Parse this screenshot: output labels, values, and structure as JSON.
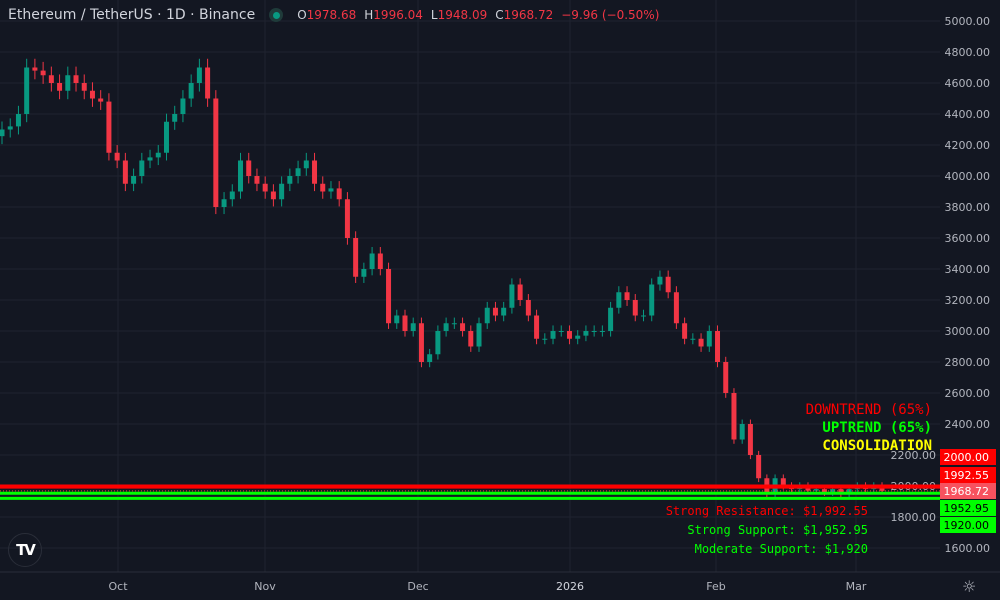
{
  "header": {
    "symbol": "Ethereum / TetherUS · 1D · Binance",
    "o_label": "O",
    "o": "1978.68",
    "h_label": "H",
    "h": "1996.04",
    "l_label": "L",
    "l": "1948.09",
    "c_label": "C",
    "c": "1968.72",
    "change": "−9.96 (−0.50%)"
  },
  "colors": {
    "up": "#089981",
    "down": "#f23645",
    "bg": "#131722",
    "grid": "#1f2330",
    "axis_text": "#b2b5be",
    "resistance": "#ff0000",
    "support": "#00ff00",
    "consolidation": "#ffff00"
  },
  "chart_data": {
    "type": "candlestick",
    "title": "Ethereum / TetherUS · 1D · Binance",
    "ylim": [
      1600,
      5000
    ],
    "y_ticks": [
      "5000.00",
      "4800.00",
      "4600.00",
      "4400.00",
      "4200.00",
      "4000.00",
      "3800.00",
      "3600.00",
      "3400.00",
      "3200.00",
      "3000.00",
      "2800.00",
      "2600.00",
      "2400.00",
      "2200.00",
      "2000.00",
      "1800.00",
      "1600.00"
    ],
    "x_ticks": [
      "Oct",
      "Nov",
      "Dec",
      "2026",
      "Feb",
      "Mar"
    ],
    "grid": true,
    "closes": [
      4300,
      4320,
      4400,
      4700,
      4680,
      4650,
      4600,
      4550,
      4650,
      4600,
      4550,
      4500,
      4480,
      4150,
      4100,
      3950,
      4000,
      4100,
      4120,
      4150,
      4350,
      4400,
      4500,
      4600,
      4700,
      4500,
      3800,
      3850,
      3900,
      4100,
      4000,
      3950,
      3900,
      3850,
      3950,
      4000,
      4050,
      4100,
      3950,
      3900,
      3920,
      3850,
      3600,
      3350,
      3400,
      3500,
      3400,
      3050,
      3100,
      3000,
      3050,
      2800,
      2850,
      3000,
      3050,
      3050,
      3000,
      2900,
      3050,
      3150,
      3100,
      3150,
      3300,
      3200,
      3100,
      2950,
      2950,
      3000,
      3000,
      2950,
      2970,
      3000,
      3000,
      3000,
      3150,
      3250,
      3200,
      3100,
      3100,
      3300,
      3350,
      3250,
      3050,
      2950,
      2950,
      2900,
      3000,
      2800,
      2600,
      2300,
      2400,
      2200,
      2050,
      1950,
      2050,
      2000,
      1980,
      2000,
      1970,
      1980,
      1960,
      1980,
      1950,
      1980,
      2000,
      1980,
      2000,
      1968.72
    ],
    "last_price": "1968.72",
    "levels": [
      {
        "price": 2000,
        "label": "2000.00",
        "kind": "resistance"
      },
      {
        "price": 1992.55,
        "label": "1992.55",
        "kind": "resistance"
      },
      {
        "price": 1952.95,
        "label": "1952.95",
        "kind": "support"
      },
      {
        "price": 1920,
        "label": "1920.00",
        "kind": "support"
      }
    ],
    "annotations": {
      "downtrend": "DOWNTREND (65%)",
      "uptrend": "UPTREND (65%)",
      "consolidation": "CONSOLIDATION",
      "strong_resistance": "Strong Resistance: $1,992.55",
      "strong_support": "Strong Support: $1,952.95",
      "moderate_support": "Moderate Support: $1,920"
    }
  }
}
